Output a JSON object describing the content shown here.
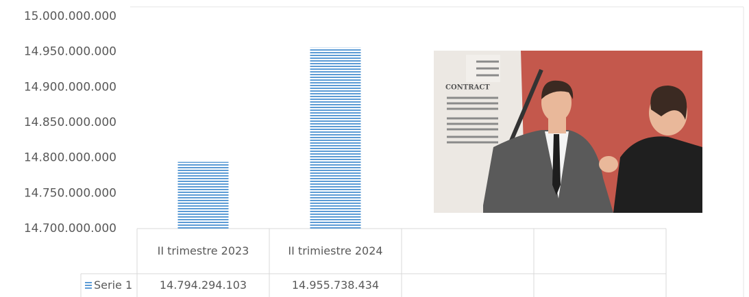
{
  "chart_data": {
    "type": "bar",
    "categories": [
      "II trimestre 2023",
      "II trimiestre 2024",
      null,
      null
    ],
    "series": [
      {
        "name": "Serie 1",
        "color": "#5b9bd5",
        "values": [
          14794294103,
          14955738434,
          null,
          null
        ],
        "value_labels": [
          "14.794.294.103",
          "14.955.738.434",
          null,
          null
        ]
      }
    ],
    "ylim": [
      14700000000,
      15000000000
    ],
    "yticks": [
      {
        "value": 14700000000,
        "label": "14.700.000.000"
      },
      {
        "value": 14750000000,
        "label": "14.750.000.000"
      },
      {
        "value": 14800000000,
        "label": "14.800.000.000"
      },
      {
        "value": 14850000000,
        "label": "14.850.000.000"
      },
      {
        "value": 14900000000,
        "label": "14.900.000.000"
      },
      {
        "value": 14950000000,
        "label": "14.950.000.000"
      },
      {
        "value": 15000000000,
        "label": "15.000.000.000"
      }
    ],
    "grid": false
  }
}
